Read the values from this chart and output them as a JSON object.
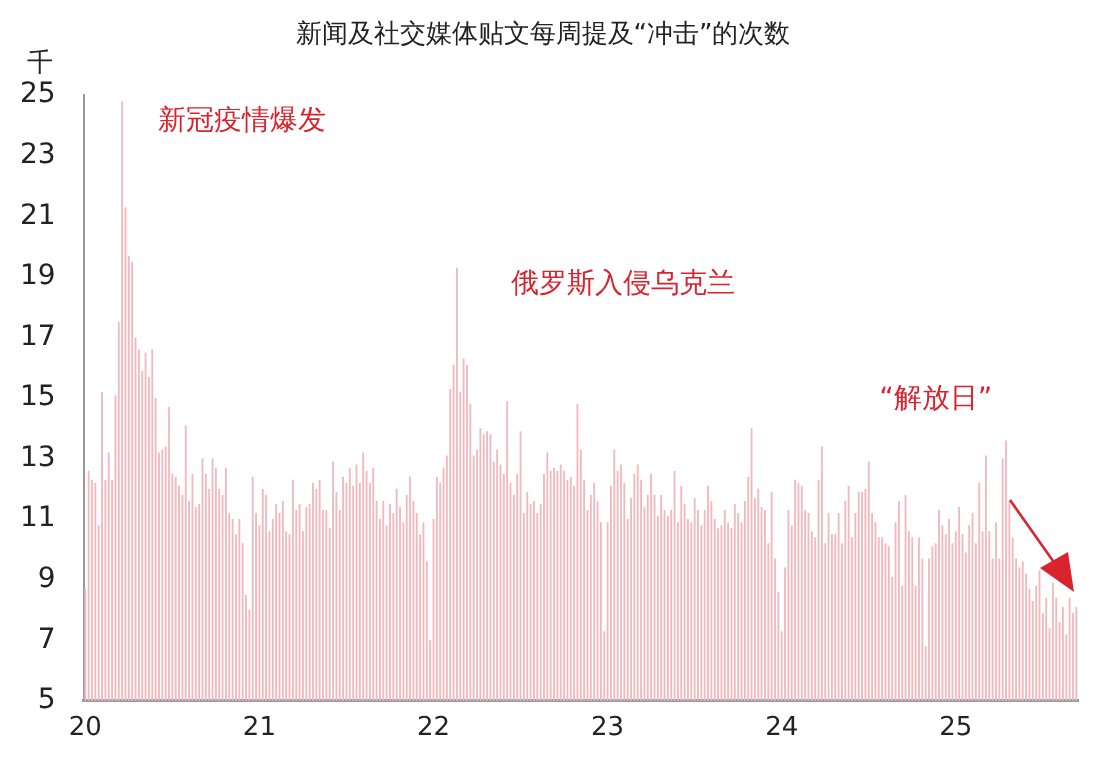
{
  "chart_data": {
    "type": "bar",
    "title": "新闻及社交媒体贴文每周提及“冲击”的次数",
    "ylabel": "千",
    "color": "#f2b8bd",
    "categories": [
      "20",
      null,
      null,
      null,
      null,
      null,
      null,
      null,
      null,
      null,
      null,
      null,
      null,
      null,
      null,
      null,
      null,
      null,
      null,
      null,
      null,
      null,
      null,
      null,
      null,
      null,
      null,
      null,
      null,
      null,
      null,
      null,
      null,
      null,
      null,
      null,
      null,
      null,
      null,
      null,
      null,
      null,
      null,
      null,
      null,
      null,
      null,
      null,
      null,
      null,
      null,
      null,
      "21",
      null,
      null,
      null,
      null,
      null,
      null,
      null,
      null,
      null,
      null,
      null,
      null,
      null,
      null,
      null,
      null,
      null,
      null,
      null,
      null,
      null,
      null,
      null,
      null,
      null,
      null,
      null,
      null,
      null,
      null,
      null,
      null,
      null,
      null,
      null,
      null,
      null,
      null,
      null,
      null,
      null,
      null,
      null,
      null,
      null,
      null,
      null,
      null,
      null,
      null,
      null,
      "22",
      null,
      null,
      null,
      null,
      null,
      null,
      null,
      null,
      null,
      null,
      null,
      null,
      null,
      null,
      null,
      null,
      null,
      null,
      null,
      null,
      null,
      null,
      null,
      null,
      null,
      null,
      null,
      null,
      null,
      null,
      null,
      null,
      null,
      null,
      null,
      null,
      null,
      null,
      null,
      null,
      null,
      null,
      null,
      null,
      null,
      null,
      null,
      null,
      null,
      null,
      null,
      "23",
      null,
      null,
      null,
      null,
      null,
      null,
      null,
      null,
      null,
      null,
      null,
      null,
      null,
      null,
      null,
      null,
      null,
      null,
      null,
      null,
      null,
      null,
      null,
      null,
      null,
      null,
      null,
      null,
      null,
      null,
      null,
      null,
      null,
      null,
      null,
      null,
      null,
      null,
      null,
      null,
      null,
      null,
      null,
      null,
      null,
      null,
      null,
      null,
      null,
      null,
      null,
      "24",
      null,
      null,
      null,
      null,
      null,
      null,
      null,
      null,
      null,
      null,
      null,
      null,
      null,
      null,
      null,
      null,
      null,
      null,
      null,
      null,
      null,
      null,
      null,
      null,
      null,
      null,
      null,
      null,
      null,
      null,
      null,
      null,
      null,
      null,
      null,
      null,
      null,
      null,
      null,
      null,
      null,
      null,
      null,
      null,
      null,
      null,
      null,
      null,
      null,
      null,
      null,
      "25",
      null,
      null,
      null,
      null,
      null,
      null,
      null,
      null,
      null,
      null,
      null,
      null,
      null,
      null,
      null,
      null,
      null,
      null,
      null,
      null,
      null,
      null,
      null,
      null,
      null,
      null,
      null,
      null,
      null,
      null,
      null,
      null,
      null,
      null,
      null,
      null
    ],
    "values": [
      8.7,
      12.6,
      12.3,
      12.2,
      10.8,
      15.2,
      12.3,
      13.2,
      12.3,
      15.1,
      17.5,
      24.8,
      21.3,
      19.7,
      19.5,
      17.0,
      16.6,
      15.9,
      16.5,
      15.7,
      16.6,
      15.0,
      13.2,
      13.3,
      13.4,
      14.7,
      12.5,
      12.4,
      12.1,
      11.8,
      14.1,
      11.6,
      12.5,
      11.4,
      11.5,
      13.0,
      12.5,
      12.0,
      13.0,
      12.7,
      12.0,
      11.8,
      12.7,
      11.2,
      11.0,
      10.5,
      11.0,
      10.2,
      8.5,
      8.0,
      12.4,
      11.2,
      10.8,
      12.0,
      11.8,
      10.6,
      11.0,
      11.5,
      11.2,
      11.6,
      10.6,
      10.5,
      12.3,
      11.3,
      11.5,
      10.6,
      11.4,
      11.5,
      12.2,
      12.0,
      12.3,
      11.3,
      11.3,
      10.7,
      12.9,
      11.9,
      11.3,
      12.4,
      12.2,
      12.7,
      12.1,
      12.8,
      12.2,
      13.2,
      12.6,
      12.2,
      12.7,
      11.6,
      11.0,
      11.6,
      10.8,
      11.5,
      11.2,
      12.0,
      11.4,
      10.9,
      11.8,
      12.4,
      11.6,
      11.2,
      10.5,
      10.9,
      9.6,
      7.0,
      11.0,
      12.4,
      12.2,
      12.7,
      13.1,
      15.3,
      16.1,
      19.3,
      15.2,
      16.3,
      16.1,
      14.8,
      13.1,
      13.3,
      14.0,
      13.8,
      13.9,
      13.8,
      12.9,
      13.3,
      12.8,
      12.5,
      14.9,
      12.2,
      11.8,
      12.5,
      13.9,
      11.2,
      11.9,
      11.5,
      11.6,
      11.2,
      11.5,
      12.5,
      13.2,
      12.6,
      12.7,
      12.6,
      12.8,
      12.6,
      12.3,
      12.4,
      12.1,
      14.8,
      13.3,
      12.3,
      11.3,
      11.8,
      12.2,
      11.6,
      10.9,
      7.3,
      10.9,
      12.1,
      13.3,
      12.6,
      12.8,
      12.2,
      11.0,
      11.7,
      12.5,
      12.8,
      12.3,
      11.4,
      11.8,
      12.5,
      11.8,
      11.1,
      11.8,
      11.3,
      11.1,
      11.3,
      12.6,
      10.9,
      12.1,
      11.5,
      11.0,
      10.9,
      11.7,
      11.3,
      10.8,
      11.3,
      12.1,
      11.6,
      11.0,
      10.7,
      10.8,
      11.3,
      10.9,
      10.7,
      11.5,
      11.2,
      10.9,
      11.6,
      12.4,
      14.0,
      11.7,
      12.0,
      11.4,
      11.3,
      10.2,
      11.9,
      9.7,
      8.6,
      7.3,
      9.4,
      11.3,
      10.8,
      12.3,
      12.2,
      12.1,
      11.3,
      11.2,
      10.6,
      10.4,
      12.3,
      13.4,
      10.2,
      11.2,
      10.5,
      10.5,
      11.2,
      10.2,
      11.6,
      12.1,
      10.4,
      11.2,
      11.9,
      11.9,
      12.0,
      12.9,
      11.2,
      10.9,
      10.4,
      10.4,
      10.2,
      10.1,
      9.1,
      10.9,
      11.6,
      8.8,
      11.8,
      10.6,
      10.4,
      8.8,
      10.4,
      9.7,
      6.8,
      9.7,
      10.1,
      10.2,
      11.3,
      10.8,
      10.5,
      11.0,
      10.2,
      10.6,
      11.4,
      10.5,
      9.9,
      10.8,
      11.2,
      10.2,
      12.2,
      10.6,
      13.1,
      10.6,
      9.7,
      10.9,
      9.7,
      13.0,
      13.6,
      11.6,
      10.4,
      9.7,
      9.4,
      9.6,
      9.2,
      8.7,
      8.3,
      8.8,
      9.3,
      7.9,
      8.4,
      7.4,
      8.9,
      8.4,
      7.6,
      8.1,
      7.2,
      8.4,
      7.9,
      8.1
    ],
    "ylim": [
      5,
      25
    ],
    "yticks": [
      5,
      7,
      9,
      11,
      13,
      15,
      17,
      19,
      21,
      23,
      25
    ],
    "grid": false,
    "annotations": [
      "新冠疫情爆发",
      "俄罗斯入侵乌克兰",
      "“解放日”"
    ]
  }
}
